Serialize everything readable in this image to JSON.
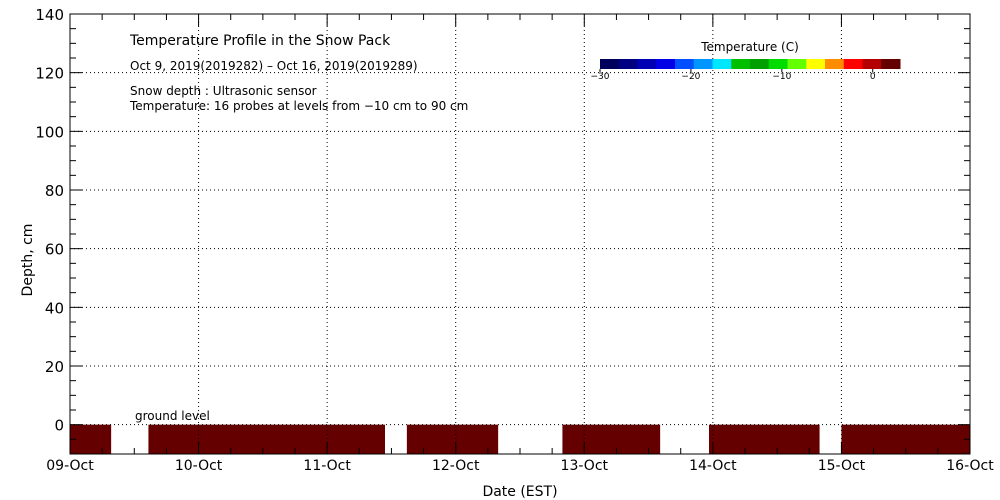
{
  "chart_data": {
    "type": "heatmap",
    "title": "Temperature Profile in the Snow Pack",
    "subtitle": "Oct  9, 2019(2019282) – Oct 16, 2019(2019289)",
    "notes": [
      "Snow depth : Ultrasonic sensor",
      "Temperature: 16 probes at levels from −10 cm to 90 cm"
    ],
    "annotation": "ground level",
    "xlabel": "Date (EST)",
    "ylabel": "Depth, cm",
    "x_ticks": [
      "09-Oct",
      "10-Oct",
      "11-Oct",
      "12-Oct",
      "13-Oct",
      "14-Oct",
      "15-Oct",
      "16-Oct"
    ],
    "xlim_days": [
      0,
      7
    ],
    "ylim": [
      -10,
      140
    ],
    "y_ticks": [
      0,
      20,
      40,
      60,
      80,
      100,
      120,
      140
    ],
    "grid": "dotted",
    "colorbar": {
      "title": "Temperature (C)",
      "tick_labels": [
        "−30",
        "−20",
        "−10",
        "0"
      ],
      "tick_values": [
        -30,
        -20,
        -10,
        0
      ],
      "range": [
        -30,
        3
      ],
      "colors": [
        "#00005a",
        "#000080",
        "#0000b4",
        "#0000e6",
        "#0050ff",
        "#0096ff",
        "#00e6ff",
        "#00be00",
        "#00a000",
        "#00dc00",
        "#64ff00",
        "#ffff00",
        "#ff8c00",
        "#ff0000",
        "#b40000",
        "#640000"
      ]
    },
    "data_segments": [
      {
        "start_day": 0.0,
        "end_day": 0.32,
        "temp_c": 2
      },
      {
        "start_day": 0.61,
        "end_day": 2.45,
        "temp_c": 2
      },
      {
        "start_day": 2.62,
        "end_day": 3.33,
        "temp_c": 2
      },
      {
        "start_day": 3.83,
        "end_day": 4.59,
        "temp_c": 2
      },
      {
        "start_day": 4.97,
        "end_day": 5.83,
        "temp_c": 2
      },
      {
        "start_day": 6.0,
        "end_day": 7.0,
        "temp_c": 2
      }
    ],
    "data_depth_range_cm": [
      -10,
      0
    ],
    "series_color": "#640000"
  }
}
